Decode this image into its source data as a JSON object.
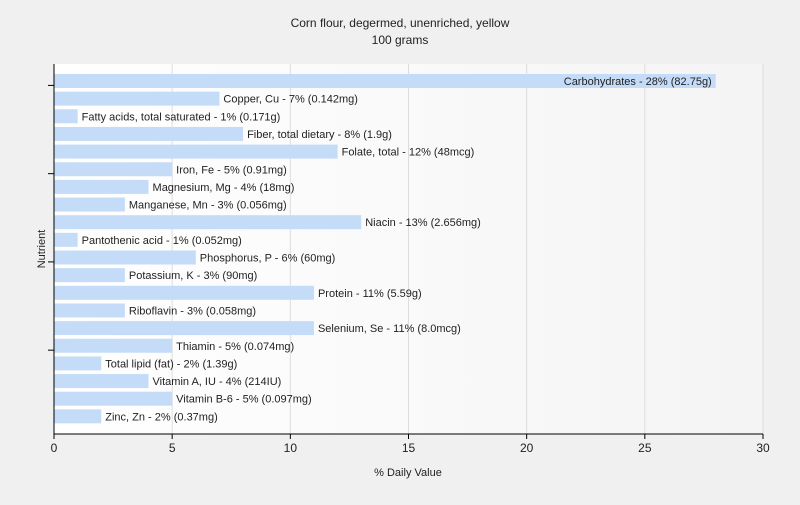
{
  "chart_data": {
    "type": "bar",
    "orientation": "horizontal",
    "title": "Corn flour, degermed, unenriched, yellow",
    "subtitle": "100 grams",
    "xlabel": "% Daily Value",
    "ylabel": "Nutrient",
    "xlim": [
      0,
      30
    ],
    "xticks": [
      0,
      5,
      10,
      15,
      20,
      25,
      30
    ],
    "grid": true,
    "legend": "none",
    "colors": {
      "bar": "#c5dcf8",
      "grid": "#dddddd",
      "axis": "#000000",
      "background": "#ffffff"
    },
    "categories": [
      "Carbohydrates",
      "Copper, Cu",
      "Fatty acids, total saturated",
      "Fiber, total dietary",
      "Folate, total",
      "Iron, Fe",
      "Magnesium, Mg",
      "Manganese, Mn",
      "Niacin",
      "Pantothenic acid",
      "Phosphorus, P",
      "Potassium, K",
      "Protein",
      "Riboflavin",
      "Selenium, Se",
      "Thiamin",
      "Total lipid (fat)",
      "Vitamin A, IU",
      "Vitamin B-6",
      "Zinc, Zn"
    ],
    "values": [
      28,
      7,
      1,
      8,
      12,
      5,
      4,
      3,
      13,
      1,
      6,
      3,
      11,
      3,
      11,
      5,
      2,
      4,
      5,
      2
    ],
    "labels": [
      "Carbohydrates - 28% (82.75g)",
      "Copper, Cu - 7% (0.142mg)",
      "Fatty acids, total saturated - 1% (0.171g)",
      "Fiber, total dietary - 8% (1.9g)",
      "Folate, total - 12% (48mcg)",
      "Iron, Fe - 5% (0.91mg)",
      "Magnesium, Mg - 4% (18mg)",
      "Manganese, Mn - 3% (0.056mg)",
      "Niacin - 13% (2.656mg)",
      "Pantothenic acid - 1% (0.052mg)",
      "Phosphorus, P - 6% (60mg)",
      "Potassium, K - 3% (90mg)",
      "Protein - 11% (5.59g)",
      "Riboflavin - 3% (0.058mg)",
      "Selenium, Se - 11% (8.0mcg)",
      "Thiamin - 5% (0.074mg)",
      "Total lipid (fat) - 2% (1.39g)",
      "Vitamin A, IU - 4% (214IU)",
      "Vitamin B-6 - 5% (0.097mg)",
      "Zinc, Zn - 2% (0.37mg)"
    ]
  }
}
